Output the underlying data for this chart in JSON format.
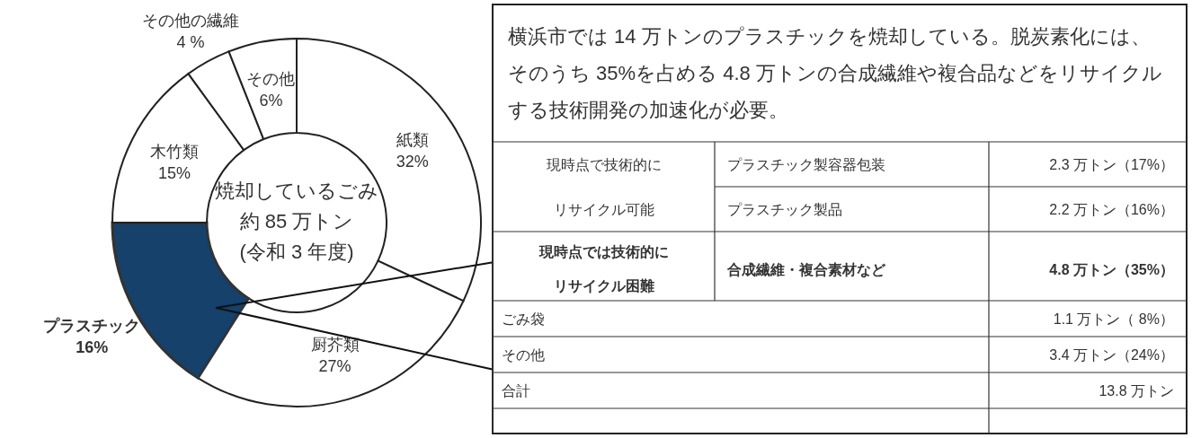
{
  "chart_data": [
    {
      "type": "donut",
      "categories": [
        "紙類",
        "厨芥類",
        "プラスチック",
        "木竹類",
        "その他の繊維",
        "その他"
      ],
      "values": [
        32,
        27,
        16,
        15,
        4,
        6
      ],
      "colors": [
        "#ffffff",
        "#ffffff",
        "#15416b",
        "#ffffff",
        "#ffffff",
        "#ffffff"
      ],
      "value_labels": [
        "32%",
        "27%",
        "16%",
        "15%",
        "4 %",
        "6%"
      ],
      "annotations": [
        "焼却しているごみ",
        "約 85 万トン",
        "(令和 3 年度)"
      ]
    },
    {
      "type": "other",
      "annotations": [
        "横浜市では 14 万トンのプラスチックを焼却している。脱炭素化には、",
        "そのうち 35%を占める 4.8 万トンの合成繊維や複合品などをリサイクル",
        "する技術開発の加速化が必要。",
        "現時点で技術的に",
        "リサイクル可能",
        "プラスチック製容器包装",
        "2.3 万トン（17%）",
        "プラスチック製品",
        "2.2 万トン（16%）",
        "現時点では技術的に",
        "リサイクル困難",
        "合成繊維・複合素材など",
        "4.8 万トン（35%）",
        "ごみ袋",
        "1.1 万トン（ 8%）",
        "その他",
        "3.4 万トン（24%）",
        "合計",
        "13.8 万トン"
      ]
    }
  ]
}
